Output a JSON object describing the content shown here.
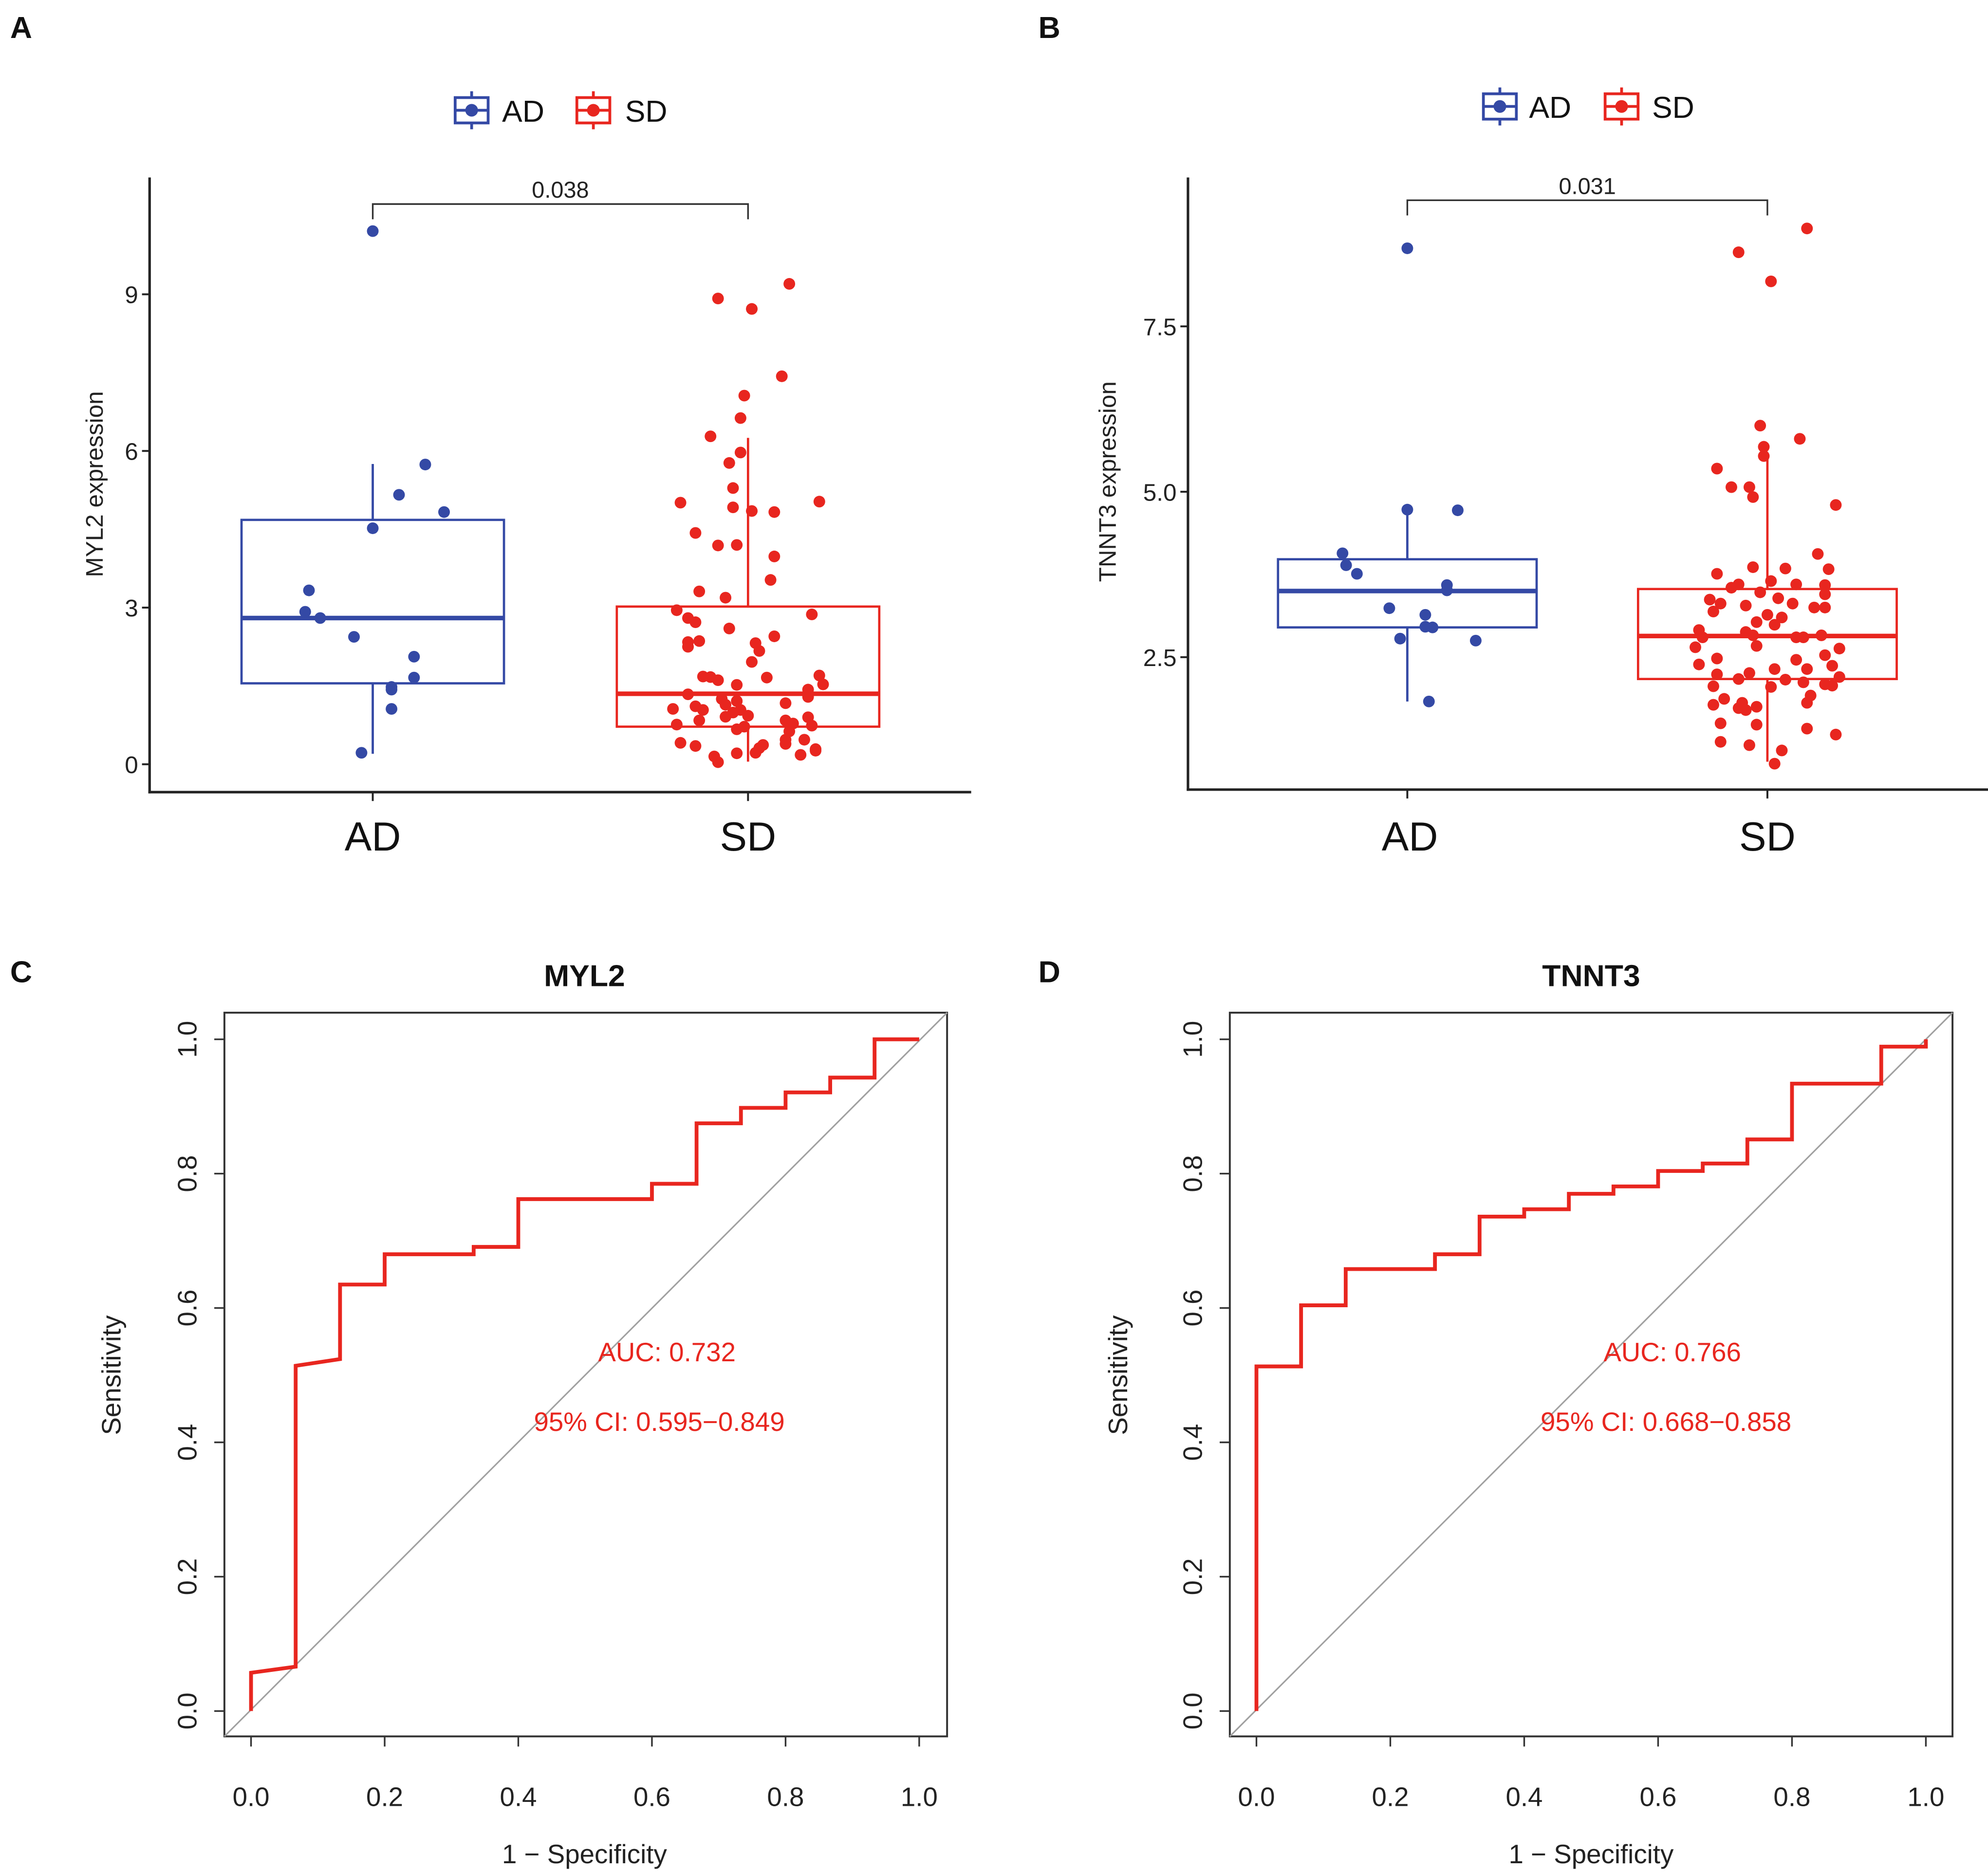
{
  "colors": {
    "AD": "#3449a5",
    "SD": "#e8261f",
    "roc_line": "#e8261f",
    "diagonal": "#a0a0a0",
    "axis": "#222222"
  },
  "chart_data": [
    {
      "panel": "A",
      "type": "box",
      "legend": {
        "entries": [
          "AD",
          "SD"
        ],
        "position": "top"
      },
      "ylabel": "MYL2 expression",
      "categories": [
        "AD",
        "SD"
      ],
      "yticks": [
        0,
        3,
        6,
        9
      ],
      "ylim": [
        -0.5,
        11.2
      ],
      "comparison": {
        "groups": [
          "AD",
          "SD"
        ],
        "p_value": "0.038"
      },
      "boxes": [
        {
          "group": "AD",
          "lower_whisker": 0.2,
          "q1": 1.55,
          "median": 2.8,
          "q3": 4.68,
          "upper_whisker": 5.75
        },
        {
          "group": "SD",
          "lower_whisker": 0.05,
          "q1": 0.72,
          "median": 1.35,
          "q3": 3.02,
          "upper_whisker": 6.25
        }
      ],
      "points": {
        "AD": [
          [
            0.0,
            10.21
          ],
          [
            0.14,
            5.74
          ],
          [
            0.07,
            5.16
          ],
          [
            0.19,
            4.83
          ],
          [
            0.0,
            4.52
          ],
          [
            -0.17,
            3.33
          ],
          [
            -0.18,
            2.92
          ],
          [
            -0.14,
            2.8
          ],
          [
            -0.05,
            2.44
          ],
          [
            0.11,
            2.06
          ],
          [
            0.11,
            1.66
          ],
          [
            0.05,
            1.48
          ],
          [
            0.05,
            1.43
          ],
          [
            0.05,
            1.06
          ],
          [
            -0.03,
            0.22
          ]
        ],
        "SD": [
          [
            0.11,
            9.2
          ],
          [
            -0.08,
            8.92
          ],
          [
            0.01,
            8.72
          ],
          [
            0.09,
            7.43
          ],
          [
            -0.01,
            7.06
          ],
          [
            -0.02,
            6.63
          ],
          [
            -0.1,
            6.28
          ],
          [
            -0.02,
            5.97
          ],
          [
            -0.05,
            5.77
          ],
          [
            -0.04,
            5.29
          ],
          [
            -0.18,
            5.01
          ],
          [
            0.19,
            5.03
          ],
          [
            -0.04,
            4.92
          ],
          [
            0.01,
            4.85
          ],
          [
            0.07,
            4.83
          ],
          [
            -0.14,
            4.43
          ],
          [
            -0.08,
            4.19
          ],
          [
            -0.03,
            4.2
          ],
          [
            0.07,
            3.98
          ],
          [
            0.06,
            3.53
          ],
          [
            -0.13,
            3.31
          ],
          [
            -0.06,
            3.19
          ],
          [
            -0.19,
            2.95
          ],
          [
            0.17,
            2.87
          ],
          [
            -0.16,
            2.8
          ],
          [
            -0.14,
            2.72
          ],
          [
            -0.05,
            2.6
          ],
          [
            0.07,
            2.45
          ],
          [
            -0.13,
            2.36
          ],
          [
            -0.16,
            2.34
          ],
          [
            0.02,
            2.32
          ],
          [
            -0.16,
            2.25
          ],
          [
            0.03,
            2.17
          ],
          [
            0.01,
            1.96
          ],
          [
            0.05,
            1.66
          ],
          [
            -0.12,
            1.68
          ],
          [
            -0.1,
            1.67
          ],
          [
            -0.08,
            1.61
          ],
          [
            0.19,
            1.7
          ],
          [
            0.2,
            1.53
          ],
          [
            -0.03,
            1.52
          ],
          [
            0.16,
            1.43
          ],
          [
            -0.16,
            1.34
          ],
          [
            0.16,
            1.29
          ],
          [
            -0.07,
            1.25
          ],
          [
            -0.03,
            1.21
          ],
          [
            0.1,
            1.17
          ],
          [
            -0.14,
            1.11
          ],
          [
            -0.06,
            1.14
          ],
          [
            -0.2,
            1.06
          ],
          [
            -0.12,
            1.04
          ],
          [
            -0.02,
            1.04
          ],
          [
            -0.04,
            0.99
          ],
          [
            0.0,
            0.93
          ],
          [
            -0.06,
            0.91
          ],
          [
            0.16,
            0.9
          ],
          [
            -0.13,
            0.84
          ],
          [
            0.1,
            0.84
          ],
          [
            0.12,
            0.78
          ],
          [
            -0.19,
            0.76
          ],
          [
            0.17,
            0.74
          ],
          [
            -0.03,
            0.67
          ],
          [
            -0.01,
            0.72
          ],
          [
            0.11,
            0.63
          ],
          [
            0.1,
            0.47
          ],
          [
            0.15,
            0.47
          ],
          [
            -0.18,
            0.41
          ],
          [
            -0.14,
            0.35
          ],
          [
            0.04,
            0.37
          ],
          [
            0.03,
            0.31
          ],
          [
            0.1,
            0.39
          ],
          [
            0.18,
            0.29
          ],
          [
            0.14,
            0.18
          ],
          [
            -0.03,
            0.21
          ],
          [
            0.02,
            0.22
          ],
          [
            -0.09,
            0.15
          ],
          [
            -0.08,
            0.04
          ],
          [
            0.18,
            0.26
          ]
        ]
      }
    },
    {
      "panel": "B",
      "type": "box",
      "legend": {
        "entries": [
          "AD",
          "SD"
        ],
        "position": "top"
      },
      "ylabel": "TNNT3 expression",
      "categories": [
        "AD",
        "SD"
      ],
      "yticks": [
        2.5,
        5.0,
        7.5
      ],
      "yticklabels": [
        "2.5",
        "5.0",
        "7.5"
      ],
      "ylim": [
        0.5,
        9.7
      ],
      "comparison": {
        "groups": [
          "AD",
          "SD"
        ],
        "p_value": "0.031"
      },
      "boxes": [
        {
          "group": "AD",
          "lower_whisker": 1.83,
          "q1": 2.95,
          "median": 3.5,
          "q3": 3.98,
          "upper_whisker": 4.73
        },
        {
          "group": "SD",
          "lower_whisker": 0.92,
          "q1": 2.17,
          "median": 2.82,
          "q3": 3.53,
          "upper_whisker": 5.55
        }
      ],
      "points": {
        "AD": [
          [
            0.0,
            8.68
          ],
          [
            0.0,
            4.73
          ],
          [
            0.14,
            4.72
          ],
          [
            -0.18,
            4.07
          ],
          [
            -0.17,
            3.89
          ],
          [
            -0.14,
            3.76
          ],
          [
            0.11,
            3.59
          ],
          [
            0.11,
            3.51
          ],
          [
            -0.05,
            3.24
          ],
          [
            0.05,
            3.14
          ],
          [
            0.05,
            2.96
          ],
          [
            0.07,
            2.95
          ],
          [
            -0.02,
            2.78
          ],
          [
            0.19,
            2.75
          ],
          [
            0.06,
            1.83
          ]
        ],
        "SD": [
          [
            0.11,
            8.98
          ],
          [
            -0.08,
            8.62
          ],
          [
            0.01,
            8.18
          ],
          [
            -0.02,
            6.0
          ],
          [
            0.09,
            5.8
          ],
          [
            -0.01,
            5.68
          ],
          [
            -0.01,
            5.54
          ],
          [
            -0.14,
            5.35
          ],
          [
            -0.1,
            5.07
          ],
          [
            -0.05,
            5.07
          ],
          [
            -0.04,
            4.92
          ],
          [
            0.19,
            4.8
          ],
          [
            0.14,
            4.06
          ],
          [
            -0.14,
            3.76
          ],
          [
            -0.04,
            3.86
          ],
          [
            0.05,
            3.84
          ],
          [
            0.17,
            3.83
          ],
          [
            0.01,
            3.65
          ],
          [
            -0.1,
            3.55
          ],
          [
            -0.08,
            3.6
          ],
          [
            0.08,
            3.6
          ],
          [
            0.16,
            3.59
          ],
          [
            -0.02,
            3.48
          ],
          [
            0.03,
            3.39
          ],
          [
            -0.16,
            3.37
          ],
          [
            -0.13,
            3.31
          ],
          [
            0.16,
            3.45
          ],
          [
            -0.06,
            3.28
          ],
          [
            0.07,
            3.31
          ],
          [
            0.13,
            3.25
          ],
          [
            0.16,
            3.25
          ],
          [
            -0.15,
            3.19
          ],
          [
            0.0,
            3.14
          ],
          [
            0.04,
            3.1
          ],
          [
            -0.03,
            3.03
          ],
          [
            0.02,
            2.99
          ],
          [
            -0.19,
            2.91
          ],
          [
            -0.06,
            2.88
          ],
          [
            -0.04,
            2.83
          ],
          [
            0.08,
            2.8
          ],
          [
            0.1,
            2.8
          ],
          [
            0.15,
            2.83
          ],
          [
            -0.18,
            2.8
          ],
          [
            -0.2,
            2.65
          ],
          [
            -0.03,
            2.67
          ],
          [
            0.2,
            2.63
          ],
          [
            0.16,
            2.53
          ],
          [
            -0.14,
            2.48
          ],
          [
            0.08,
            2.46
          ],
          [
            -0.19,
            2.39
          ],
          [
            0.18,
            2.37
          ],
          [
            0.11,
            2.32
          ],
          [
            0.02,
            2.32
          ],
          [
            -0.05,
            2.26
          ],
          [
            -0.14,
            2.24
          ],
          [
            0.2,
            2.2
          ],
          [
            -0.08,
            2.17
          ],
          [
            0.05,
            2.16
          ],
          [
            0.1,
            2.12
          ],
          [
            0.16,
            2.09
          ],
          [
            0.18,
            2.07
          ],
          [
            -0.15,
            2.06
          ],
          [
            0.01,
            2.05
          ],
          [
            0.12,
            1.92
          ],
          [
            -0.12,
            1.87
          ],
          [
            -0.07,
            1.81
          ],
          [
            -0.15,
            1.78
          ],
          [
            -0.03,
            1.75
          ],
          [
            -0.08,
            1.73
          ],
          [
            0.11,
            1.81
          ],
          [
            -0.06,
            1.7
          ],
          [
            -0.13,
            1.5
          ],
          [
            -0.03,
            1.48
          ],
          [
            0.11,
            1.42
          ],
          [
            0.19,
            1.33
          ],
          [
            -0.13,
            1.22
          ],
          [
            -0.05,
            1.17
          ],
          [
            0.04,
            1.09
          ],
          [
            0.02,
            0.89
          ]
        ]
      }
    },
    {
      "panel": "C",
      "type": "line",
      "title": "MYL2",
      "xlabel": "1 − Specificity",
      "ylabel": "Sensitivity",
      "xlim": [
        0,
        1
      ],
      "ylim": [
        0,
        1
      ],
      "xticks": [
        "0.0",
        "0.2",
        "0.4",
        "0.6",
        "0.8",
        "1.0"
      ],
      "yticks": [
        "0.0",
        "0.2",
        "0.4",
        "0.6",
        "0.8",
        "1.0"
      ],
      "annotation": [
        "AUC: 0.732",
        "95% CI: 0.595−0.849"
      ],
      "reference_line": [
        [
          0,
          0
        ],
        [
          1,
          1
        ]
      ],
      "roc": [
        [
          0,
          0
        ],
        [
          0,
          0.057
        ],
        [
          0.0667,
          0.066
        ],
        [
          0.0667,
          0.514
        ],
        [
          0.1333,
          0.524
        ],
        [
          0.1333,
          0.635
        ],
        [
          0.2,
          0.635
        ],
        [
          0.2,
          0.68
        ],
        [
          0.3333,
          0.68
        ],
        [
          0.3333,
          0.691
        ],
        [
          0.4,
          0.691
        ],
        [
          0.4,
          0.762
        ],
        [
          0.6,
          0.762
        ],
        [
          0.6,
          0.785
        ],
        [
          0.6667,
          0.785
        ],
        [
          0.6667,
          0.875
        ],
        [
          0.7333,
          0.875
        ],
        [
          0.7333,
          0.898
        ],
        [
          0.8,
          0.898
        ],
        [
          0.8,
          0.921
        ],
        [
          0.8667,
          0.921
        ],
        [
          0.8667,
          0.943
        ],
        [
          0.9333,
          0.943
        ],
        [
          0.9333,
          1.0
        ],
        [
          1.0,
          1.0
        ]
      ]
    },
    {
      "panel": "D",
      "type": "line",
      "title": "TNNT3",
      "xlabel": "1 − Specificity",
      "ylabel": "Sensitivity",
      "xlim": [
        0,
        1
      ],
      "ylim": [
        0,
        1
      ],
      "xticks": [
        "0.0",
        "0.2",
        "0.4",
        "0.6",
        "0.8",
        "1.0"
      ],
      "yticks": [
        "0.0",
        "0.2",
        "0.4",
        "0.6",
        "0.8",
        "1.0"
      ],
      "annotation": [
        "AUC: 0.766",
        "95% CI: 0.668−0.858"
      ],
      "reference_line": [
        [
          0,
          0
        ],
        [
          1,
          1
        ]
      ],
      "roc": [
        [
          0,
          0
        ],
        [
          0,
          0.513
        ],
        [
          0.0667,
          0.513
        ],
        [
          0.0667,
          0.604
        ],
        [
          0.1333,
          0.604
        ],
        [
          0.1333,
          0.658
        ],
        [
          0.2667,
          0.658
        ],
        [
          0.2667,
          0.68
        ],
        [
          0.3333,
          0.68
        ],
        [
          0.3333,
          0.736
        ],
        [
          0.4,
          0.736
        ],
        [
          0.4,
          0.747
        ],
        [
          0.4667,
          0.747
        ],
        [
          0.4667,
          0.77
        ],
        [
          0.5333,
          0.77
        ],
        [
          0.5333,
          0.781
        ],
        [
          0.6,
          0.781
        ],
        [
          0.6,
          0.804
        ],
        [
          0.6667,
          0.804
        ],
        [
          0.6667,
          0.815
        ],
        [
          0.7333,
          0.815
        ],
        [
          0.7333,
          0.851
        ],
        [
          0.8,
          0.851
        ],
        [
          0.8,
          0.934
        ],
        [
          0.9333,
          0.934
        ],
        [
          0.9333,
          0.989
        ],
        [
          1.0,
          0.989
        ],
        [
          1.0,
          1.0
        ]
      ]
    }
  ],
  "panels": {
    "A": {
      "label": "A",
      "legend_ad": "AD",
      "legend_sd": "SD",
      "ylabel": "MYL2 expression",
      "pval": "0.038",
      "yticks": [
        "0",
        "3",
        "6",
        "9"
      ],
      "xcat_ad": "AD",
      "xcat_sd": "SD"
    },
    "B": {
      "label": "B",
      "legend_ad": "AD",
      "legend_sd": "SD",
      "ylabel": "TNNT3 expression",
      "pval": "0.031",
      "yticks": [
        "2.5",
        "5.0",
        "7.5"
      ],
      "xcat_ad": "AD",
      "xcat_sd": "SD"
    },
    "C": {
      "label": "C",
      "title": "MYL2",
      "xlabel": "1 − Specificity",
      "ylabel": "Sensitivity",
      "auc": "AUC: 0.732",
      "ci": "95% CI: 0.595−0.849",
      "ticks": [
        "0.0",
        "0.2",
        "0.4",
        "0.6",
        "0.8",
        "1.0"
      ]
    },
    "D": {
      "label": "D",
      "title": "TNNT3",
      "xlabel": "1 − Specificity",
      "ylabel": "Sensitivity",
      "auc": "AUC: 0.766",
      "ci": "95% CI: 0.668−0.858",
      "ticks": [
        "0.0",
        "0.2",
        "0.4",
        "0.6",
        "0.8",
        "1.0"
      ]
    }
  }
}
